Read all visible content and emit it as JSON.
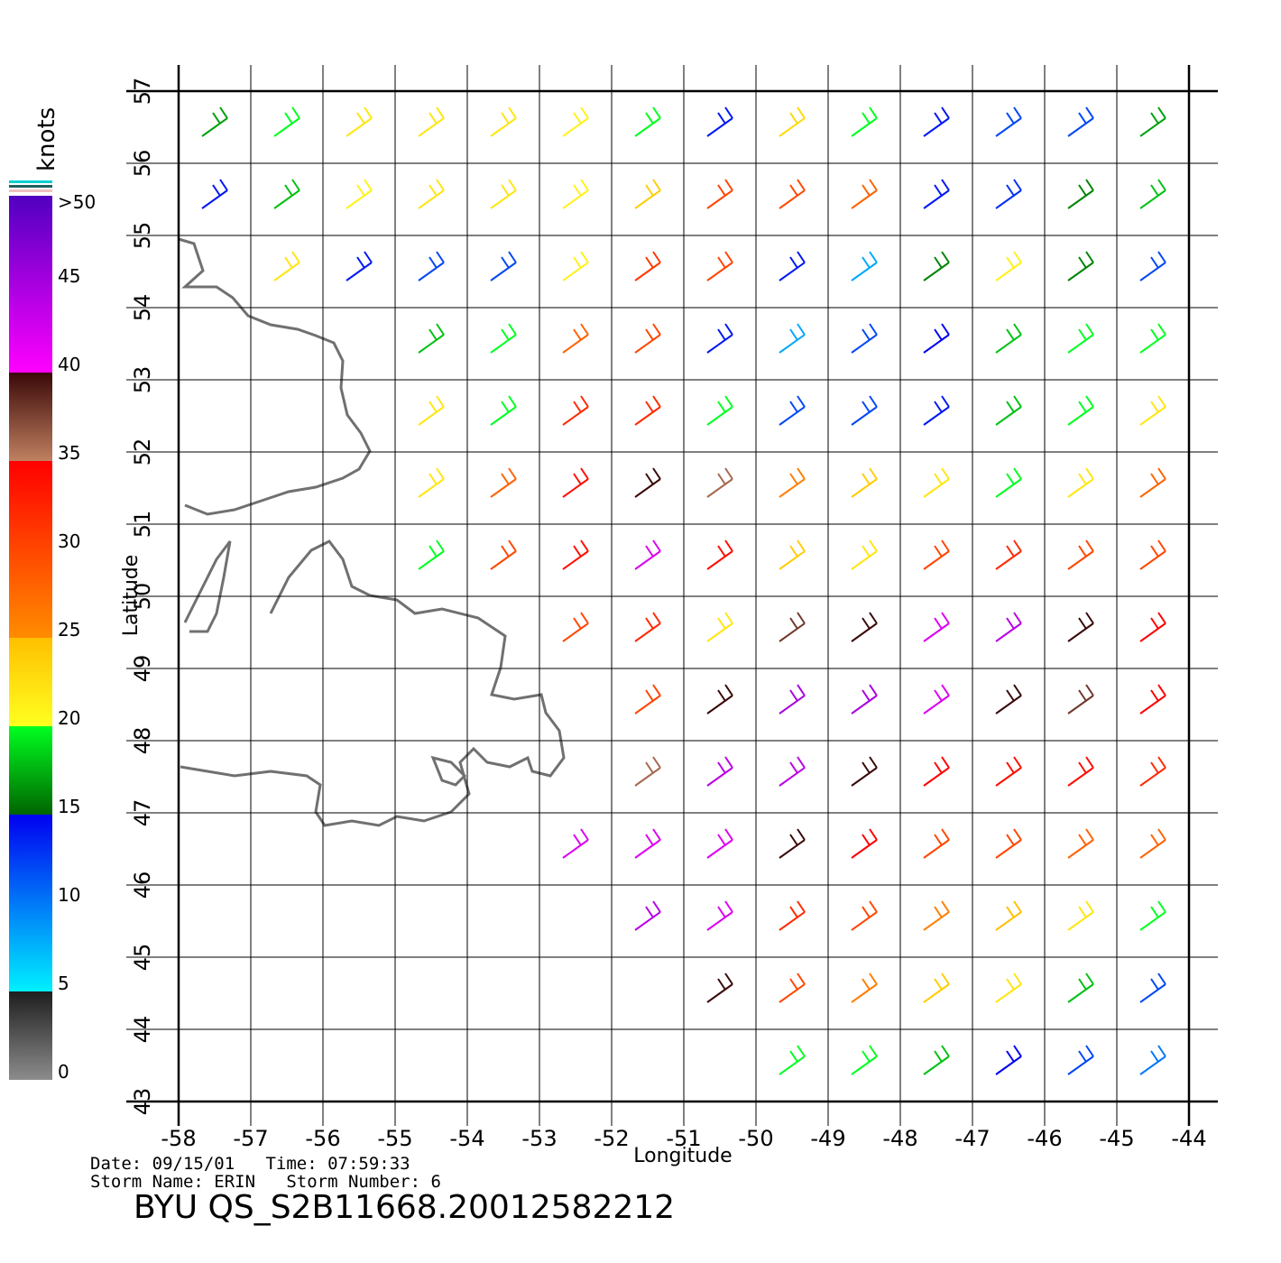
{
  "chart_data": {
    "type": "wind-map",
    "xlabel": "Longitude",
    "ylabel": "Latitude",
    "xlim": [
      -58,
      -44
    ],
    "ylim": [
      43,
      57
    ],
    "xticks": [
      -58,
      -57,
      -56,
      -55,
      -54,
      -53,
      -52,
      -51,
      -50,
      -49,
      -48,
      -47,
      -46,
      -45,
      -44
    ],
    "yticks": [
      43,
      44,
      45,
      46,
      47,
      48,
      49,
      50,
      51,
      52,
      53,
      54,
      55,
      56,
      57
    ],
    "grid": true,
    "colorbar": {
      "title": "knots",
      "lim": [
        0,
        50
      ],
      "ticks": [
        0,
        5,
        10,
        15,
        20,
        25,
        30,
        35,
        40,
        45,
        50
      ],
      "over_label": ">50",
      "segments": [
        {
          "from": 0,
          "to": 5,
          "colors": [
            "#8c8c8c",
            "#1e1e1e"
          ]
        },
        {
          "from": 5,
          "to": 15,
          "colors": [
            "#00f0ff",
            "#0000f0"
          ]
        },
        {
          "from": 15,
          "to": 20,
          "colors": [
            "#006400",
            "#00ff20"
          ]
        },
        {
          "from": 20,
          "to": 25,
          "colors": [
            "#ffff20",
            "#ffc000"
          ]
        },
        {
          "from": 25,
          "to": 35,
          "colors": [
            "#ff8c00",
            "#ff0000"
          ]
        },
        {
          "from": 35,
          "to": 40,
          "colors": [
            "#c08060",
            "#3a0808"
          ]
        },
        {
          "from": 40,
          "to": 50,
          "colors": [
            "#ff00ff",
            "#5000c0"
          ]
        }
      ]
    },
    "wind": {
      "lon": [
        -57.5,
        -56.5,
        -55.5,
        -54.5,
        -53.5,
        -52.5,
        -51.5,
        -50.5,
        -49.5,
        -48.5,
        -47.5,
        -46.5,
        -45.5,
        -44.5
      ],
      "lat": [
        56.5,
        55.5,
        54.5,
        53.5,
        52.5,
        51.5,
        50.5,
        49.5,
        48.5,
        47.5,
        46.5,
        45.5,
        44.5,
        43.5
      ],
      "speed": [
        [
          17,
          20,
          22,
          22,
          22,
          21,
          20,
          14,
          23,
          20,
          14,
          12,
          12,
          17
        ],
        [
          14,
          18,
          21,
          22,
          22,
          21,
          24,
          30,
          30,
          28,
          14,
          13,
          16,
          18
        ],
        [
          null,
          22,
          14,
          12,
          12,
          21,
          31,
          30,
          14,
          8,
          16,
          21,
          16,
          12
        ],
        [
          null,
          null,
          null,
          18,
          20,
          28,
          30,
          14,
          8,
          12,
          15,
          18,
          20,
          20
        ],
        [
          null,
          null,
          null,
          22,
          20,
          32,
          32,
          20,
          12,
          12,
          14,
          18,
          20,
          22
        ],
        [
          null,
          null,
          null,
          22,
          28,
          34,
          40,
          36,
          26,
          24,
          22,
          20,
          22,
          28
        ],
        [
          null,
          null,
          null,
          20,
          30,
          34,
          42,
          34,
          24,
          22,
          30,
          32,
          30,
          30
        ],
        [
          null,
          null,
          null,
          null,
          null,
          30,
          32,
          22,
          38,
          40,
          42,
          44,
          40,
          35
        ],
        [
          null,
          null,
          null,
          null,
          null,
          null,
          30,
          40,
          45,
          45,
          42,
          40,
          38,
          35
        ],
        [
          null,
          null,
          null,
          null,
          null,
          null,
          36,
          44,
          44,
          40,
          35,
          34,
          34,
          32
        ],
        [
          null,
          null,
          null,
          null,
          null,
          42,
          42,
          42,
          40,
          35,
          30,
          30,
          28,
          28
        ],
        [
          null,
          null,
          null,
          null,
          null,
          null,
          44,
          42,
          32,
          30,
          26,
          25,
          22,
          20
        ],
        [
          null,
          null,
          null,
          null,
          null,
          null,
          null,
          40,
          30,
          26,
          24,
          22,
          18,
          12
        ],
        [
          null,
          null,
          null,
          null,
          null,
          null,
          null,
          null,
          20,
          20,
          18,
          15,
          12,
          10
        ]
      ]
    },
    "footer": {
      "line1": "Date: 09/15/01   Time: 07:59:33",
      "line2": "Storm Name: ERIN   Storm Number: 6",
      "title": "BYU QS_S2B11668.20012582212"
    }
  }
}
